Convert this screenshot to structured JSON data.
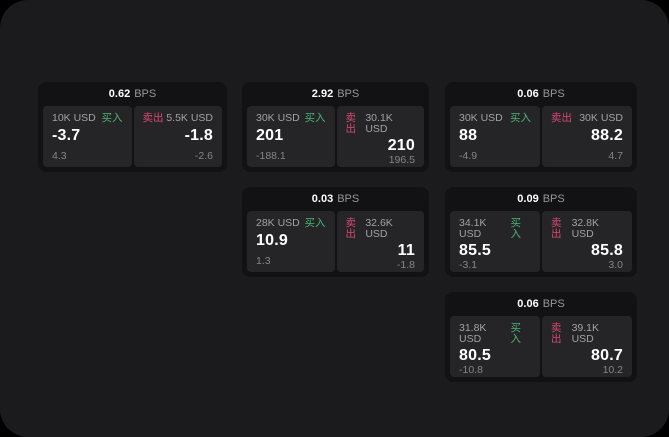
{
  "labels": {
    "buy": "买入",
    "sell": "卖出",
    "bps_unit": "BPS"
  },
  "colors": {
    "buy_green": "#4db373",
    "sell_red": "#d9486f",
    "page_bg": "#1b1b1d",
    "card_bg": "#121214",
    "panel_bg": "#252528"
  },
  "cards": [
    {
      "bps": "0.62",
      "buy": {
        "amount": "10K USD",
        "price": "-3.7",
        "change": "4.3"
      },
      "sell": {
        "amount": "5.5K USD",
        "price": "-1.8",
        "change": "-2.6"
      }
    },
    {
      "bps": "2.92",
      "buy": {
        "amount": "30K USD",
        "price": "201",
        "change": "-188.1"
      },
      "sell": {
        "amount": "30.1K USD",
        "price": "210",
        "change": "196.5"
      }
    },
    {
      "bps": "0.06",
      "buy": {
        "amount": "30K USD",
        "price": "88",
        "change": "-4.9"
      },
      "sell": {
        "amount": "30K USD",
        "price": "88.2",
        "change": "4.7"
      }
    },
    {
      "bps": "0.03",
      "buy": {
        "amount": "28K USD",
        "price": "10.9",
        "change": "1.3"
      },
      "sell": {
        "amount": "32.6K USD",
        "price": "11",
        "change": "-1.8"
      }
    },
    {
      "bps": "0.09",
      "buy": {
        "amount": "34.1K USD",
        "price": "85.5",
        "change": "-3.1"
      },
      "sell": {
        "amount": "32.8K USD",
        "price": "85.8",
        "change": "3.0"
      }
    },
    {
      "bps": "0.06",
      "buy": {
        "amount": "31.8K USD",
        "price": "80.5",
        "change": "-10.8"
      },
      "sell": {
        "amount": "39.1K USD",
        "price": "80.7",
        "change": "10.2"
      }
    }
  ]
}
